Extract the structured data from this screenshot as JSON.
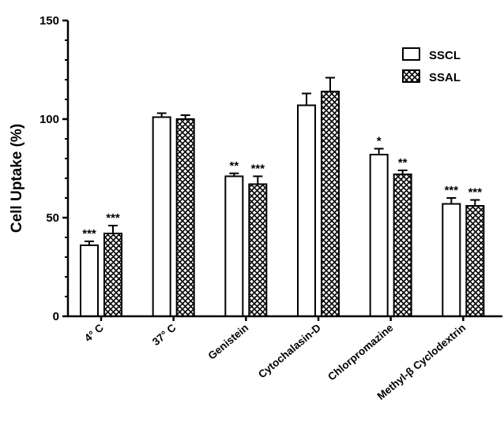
{
  "chart_data": {
    "type": "bar",
    "ylabel": "Cell Uptake (%)",
    "xlabel": "",
    "ylim": [
      0,
      150
    ],
    "yticks": [
      0,
      50,
      100,
      150
    ],
    "categories": [
      "4° C",
      "37° C",
      "Genistein",
      "Cytochalasin-D",
      "Chlorpromazine",
      "Methyl-β Cyclodextrin"
    ],
    "series": [
      {
        "name": "SSCL",
        "fill": "open",
        "values": [
          36,
          101,
          71,
          107,
          82,
          57
        ],
        "errors": [
          2,
          2,
          1.5,
          6,
          3,
          3
        ],
        "significance": [
          "***",
          "",
          "**",
          "",
          "*",
          "***"
        ]
      },
      {
        "name": "SSAL",
        "fill": "crosshatch",
        "values": [
          42,
          100,
          67,
          114,
          72,
          56
        ],
        "errors": [
          4,
          2,
          4,
          7,
          2,
          3
        ],
        "significance": [
          "***",
          "",
          "***",
          "",
          "**",
          "***"
        ]
      }
    ],
    "legend_position": "top-right",
    "grid": false
  },
  "colors": {
    "bar_stroke": "#000000",
    "bar_fill": "#ffffff",
    "hatch": "#000000"
  }
}
